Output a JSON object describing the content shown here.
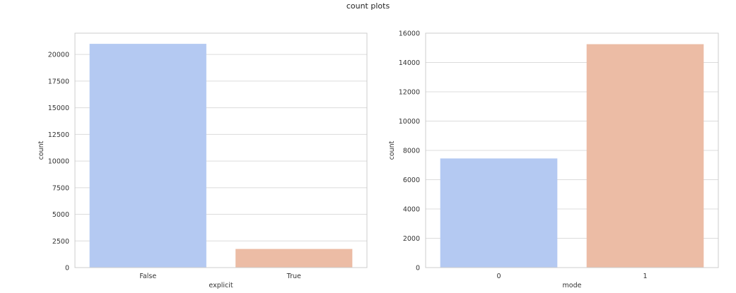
{
  "figure": {
    "title": "count plots"
  },
  "colors": {
    "bar_0": "#b4c9f2",
    "bar_1": "#ecbca5",
    "grid": "#dcdcdc",
    "spine": "#cccccc",
    "text": "#333333"
  },
  "chart_data": [
    {
      "type": "bar",
      "title": "",
      "xlabel": "explicit",
      "ylabel": "count",
      "categories": [
        "False",
        "True"
      ],
      "values": [
        21000,
        1750
      ],
      "ylim": [
        0,
        22000
      ],
      "yticks": [
        0,
        2500,
        5000,
        7500,
        10000,
        12500,
        15000,
        17500,
        20000
      ],
      "grid": true,
      "colors": [
        "#b4c9f2",
        "#ecbca5"
      ]
    },
    {
      "type": "bar",
      "title": "",
      "xlabel": "mode",
      "ylabel": "count",
      "categories": [
        "0",
        "1"
      ],
      "values": [
        7450,
        15250
      ],
      "ylim": [
        0,
        16000
      ],
      "yticks": [
        0,
        2000,
        4000,
        6000,
        8000,
        10000,
        12000,
        14000,
        16000
      ],
      "grid": true,
      "colors": [
        "#b4c9f2",
        "#ecbca5"
      ]
    }
  ]
}
